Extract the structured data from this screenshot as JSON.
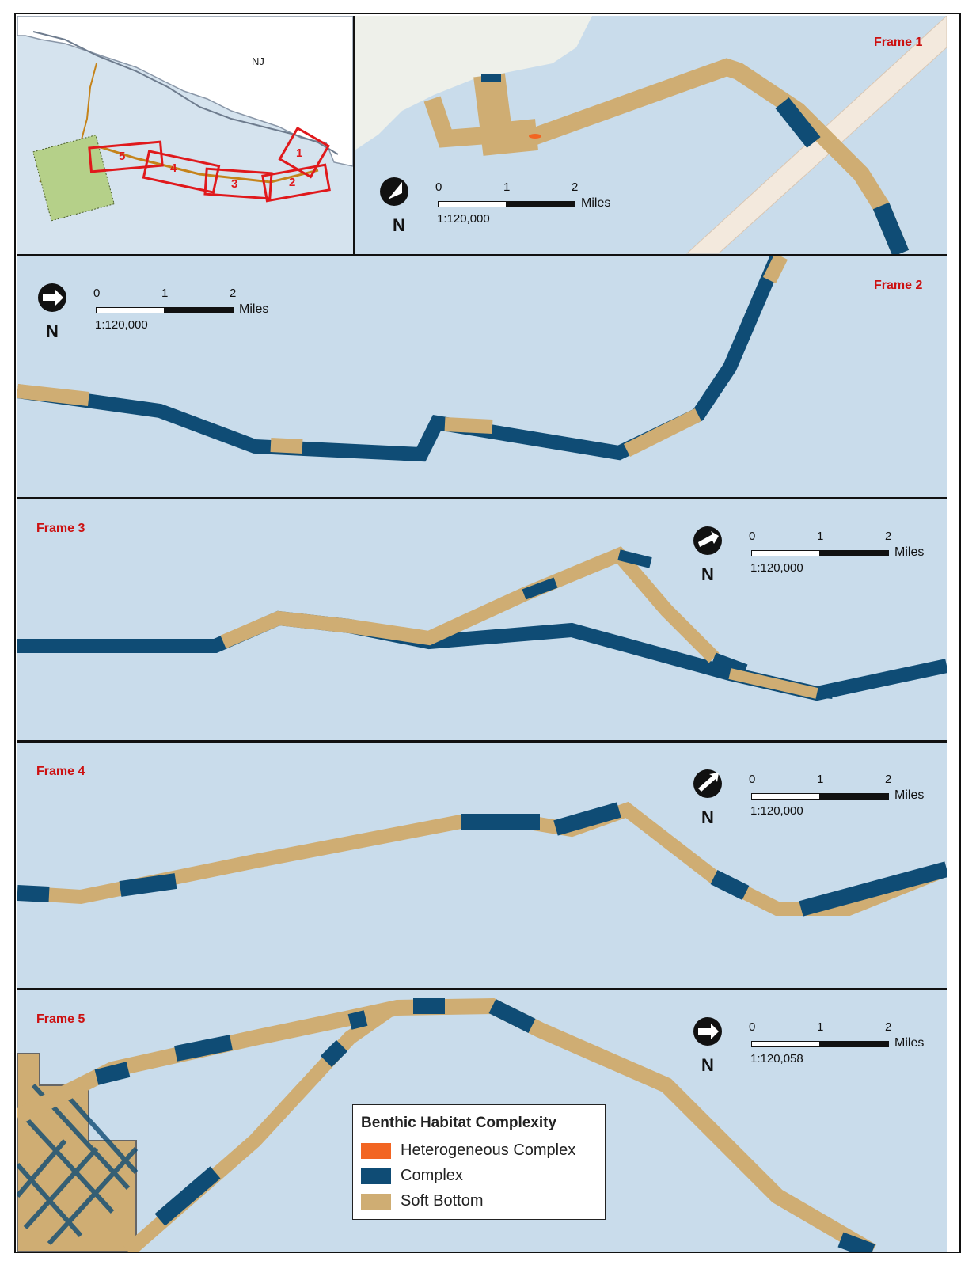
{
  "inset": {
    "state_label": "NJ",
    "frame_numbers": [
      "1",
      "2",
      "3",
      "4",
      "5"
    ]
  },
  "frames": [
    {
      "label": "Frame 1",
      "scale": {
        "ticks": [
          "0",
          "1",
          "2"
        ],
        "units": "Miles",
        "ratio": "1:120,000"
      },
      "north": "N"
    },
    {
      "label": "Frame 2",
      "scale": {
        "ticks": [
          "0",
          "1",
          "2"
        ],
        "units": "Miles",
        "ratio": "1:120,000"
      },
      "north": "N"
    },
    {
      "label": "Frame 3",
      "scale": {
        "ticks": [
          "0",
          "1",
          "2"
        ],
        "units": "Miles",
        "ratio": "1:120,000"
      },
      "north": "N"
    },
    {
      "label": "Frame 4",
      "scale": {
        "ticks": [
          "0",
          "1",
          "2"
        ],
        "units": "Miles",
        "ratio": "1:120,000"
      },
      "north": "N"
    },
    {
      "label": "Frame 5",
      "scale": {
        "ticks": [
          "0",
          "1",
          "2"
        ],
        "units": "Miles",
        "ratio": "1:120,058"
      },
      "north": "N"
    }
  ],
  "legend": {
    "title": "Benthic Habitat Complexity",
    "items": [
      {
        "label": "Heterogeneous Complex",
        "color": "#f26522"
      },
      {
        "label": "Complex",
        "color": "#0f4c75"
      },
      {
        "label": "Soft Bottom",
        "color": "#cfad73"
      }
    ]
  },
  "colors": {
    "water": "#c9dceb",
    "land": "#eef0ea",
    "frame_red": "#cc1111"
  }
}
